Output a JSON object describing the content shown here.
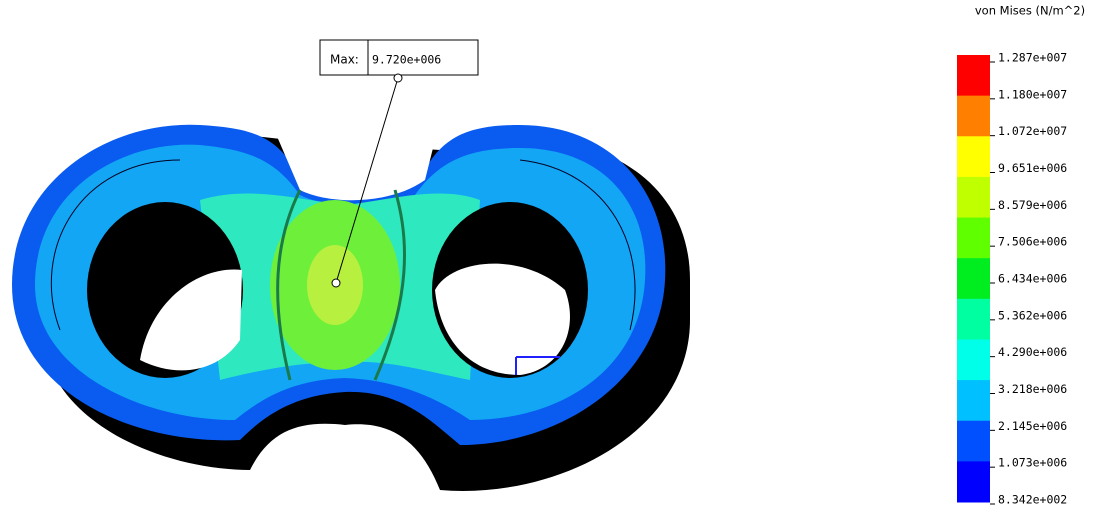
{
  "legend": {
    "title": "von Mises (N/m^2)",
    "labels": [
      "1.287e+007",
      "1.180e+007",
      "1.072e+007",
      "9.651e+006",
      "8.579e+006",
      "7.506e+006",
      "6.434e+006",
      "5.362e+006",
      "4.290e+006",
      "3.218e+006",
      "2.145e+006",
      "1.073e+006",
      "8.342e+002"
    ]
  },
  "probe": {
    "label": "Max:",
    "value": "9.720e+006"
  }
}
